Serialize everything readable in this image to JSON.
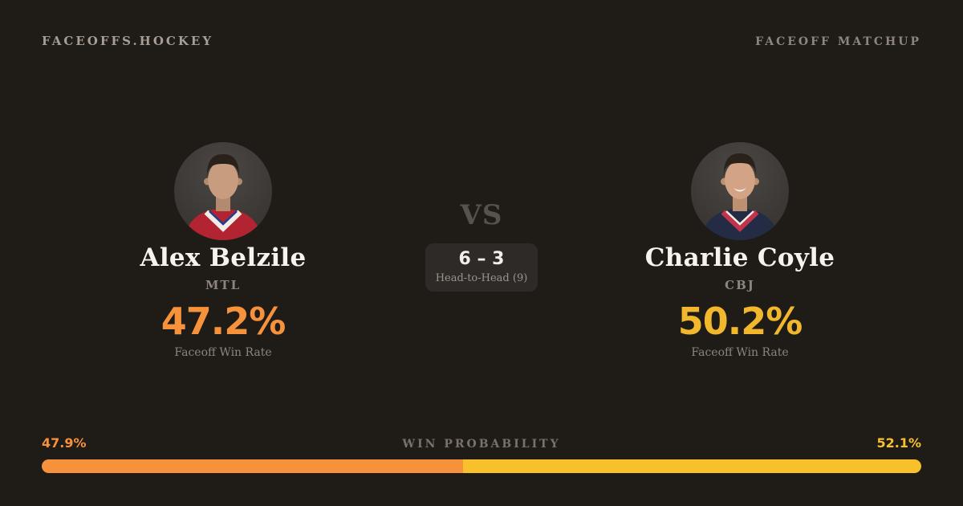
{
  "header": {
    "brand": "FACEOFFS.HOCKEY",
    "label": "FACEOFF MATCHUP"
  },
  "players": {
    "left": {
      "name": "Alex Belzile",
      "team": "MTL",
      "win_rate": "47.2%",
      "win_rate_label": "Faceoff Win Rate",
      "accent": "#f6913c",
      "avatar_colors": {
        "jersey": "#b32433",
        "trim": "#f1ede6",
        "trim2": "#1d3f8f",
        "skin": "#c79c7f",
        "skinDark": "#b38a6e",
        "hair": "#2a211b"
      }
    },
    "right": {
      "name": "Charlie Coyle",
      "team": "CBJ",
      "win_rate": "50.2%",
      "win_rate_label": "Faceoff Win Rate",
      "accent": "#f2b82d",
      "avatar_colors": {
        "jersey": "#232c44",
        "trim": "#c1344a",
        "trim2": "#f1ede6",
        "skin": "#d2a384",
        "skinDark": "#bd9071",
        "hair": "#2a211b"
      }
    }
  },
  "center": {
    "vs": "VS",
    "score": "6 – 3",
    "sublabel": "Head-to-Head (9)"
  },
  "probability": {
    "title": "WIN PROBABILITY",
    "left_label": "47.9%",
    "right_label": "52.1%",
    "left_value": 47.9,
    "right_value": 52.1,
    "left_color": "#f6913c",
    "right_color": "#f8c12b"
  },
  "chart_data": {
    "type": "bar",
    "title": "Faceoff Matchup — Win Probability",
    "categories": [
      "Alex Belzile (MTL)",
      "Charlie Coyle (CBJ)"
    ],
    "series": [
      {
        "name": "Win Probability %",
        "values": [
          47.9,
          52.1
        ]
      },
      {
        "name": "Faceoff Win Rate %",
        "values": [
          47.2,
          50.2
        ]
      },
      {
        "name": "Head-to-Head Wins",
        "values": [
          6,
          3
        ]
      }
    ],
    "head_to_head_total": 9,
    "legend_position": "none",
    "grid": false
  }
}
